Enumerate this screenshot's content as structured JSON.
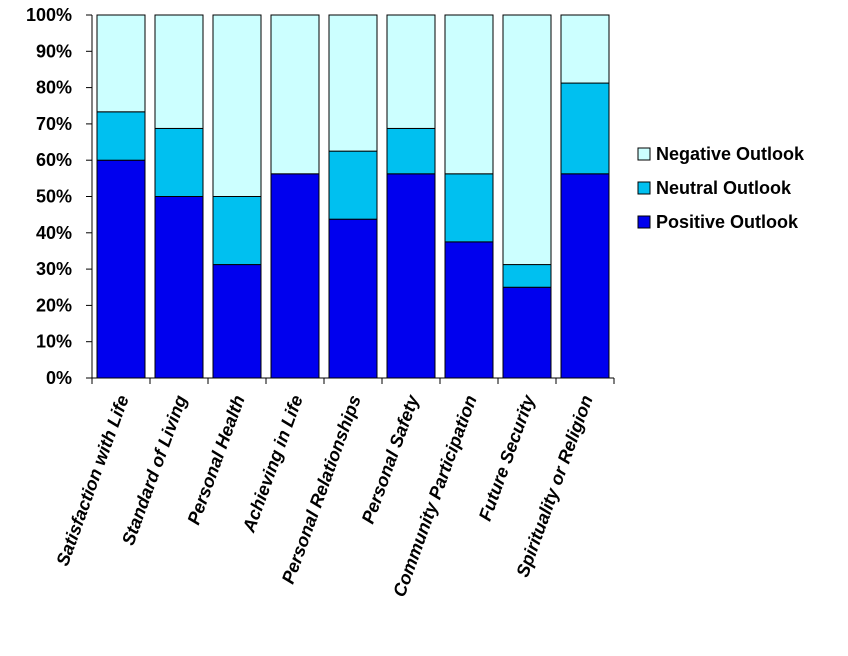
{
  "chart_data": {
    "type": "bar",
    "stacked": true,
    "percent": true,
    "categories": [
      "Satisfaction with Life",
      "Standard of Living",
      "Personal Health",
      "Achieving in Life",
      "Personal Relationships",
      "Personal Safety",
      "Community Participation",
      "Future Security",
      "Spirituality or Religion"
    ],
    "series": [
      {
        "name": "Positive Outlook",
        "color": "#0000ee",
        "values": [
          60,
          50,
          31.25,
          56.25,
          43.75,
          56.25,
          37.5,
          25,
          56.25
        ]
      },
      {
        "name": "Neutral Outlook",
        "color": "#00c0f0",
        "values": [
          13.33,
          18.75,
          18.75,
          0,
          18.75,
          12.5,
          18.75,
          6.25,
          25
        ]
      },
      {
        "name": "Negative Outlook",
        "color": "#ccffff",
        "values": [
          26.67,
          31.25,
          50,
          43.75,
          37.5,
          31.25,
          43.75,
          68.75,
          18.75
        ]
      }
    ],
    "y_ticks": [
      "0%",
      "10%",
      "20%",
      "30%",
      "40%",
      "50%",
      "60%",
      "70%",
      "80%",
      "90%",
      "100%"
    ],
    "ylim": [
      0,
      100
    ],
    "grid": false,
    "legend": {
      "placement": "right",
      "order": [
        "Negative Outlook",
        "Neutral Outlook",
        "Positive Outlook"
      ]
    }
  }
}
